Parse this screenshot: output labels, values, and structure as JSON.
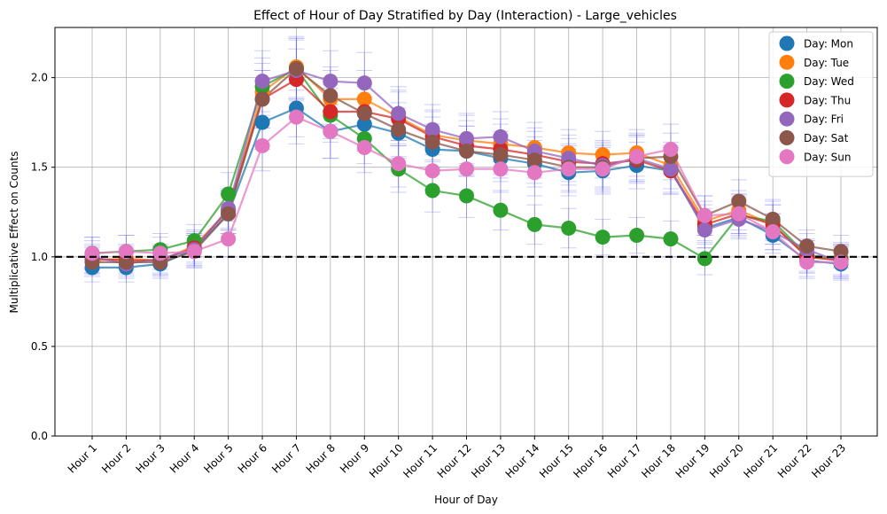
{
  "chart_data": {
    "type": "line",
    "title": "Effect of Hour of Day Stratified by Day (Interaction) - Large_vehicles",
    "xlabel": "Hour of Day",
    "ylabel": "Multiplicative Effect on Counts",
    "categories": [
      "Hour 1",
      "Hour 2",
      "Hour 3",
      "Hour 4",
      "Hour 5",
      "Hour 6",
      "Hour 7",
      "Hour 8",
      "Hour 9",
      "Hour 10",
      "Hour 11",
      "Hour 12",
      "Hour 13",
      "Hour 14",
      "Hour 15",
      "Hour 16",
      "Hour 17",
      "Hour 18",
      "Hour 19",
      "Hour 20",
      "Hour 21",
      "Hour 22",
      "Hour 23"
    ],
    "ylim": [
      0,
      2.28
    ],
    "yticks": [
      "0.0",
      "0.5",
      "1.0",
      "1.5",
      "2.0"
    ],
    "ytick_values": [
      0,
      0.5,
      1.0,
      1.5,
      2.0
    ],
    "reference_line": 1.0,
    "grid": true,
    "legend_position": "top-right",
    "error_bar_color": "#5b5bff",
    "series": [
      {
        "name": "Day: Mon",
        "color": "#1f77b4",
        "values": [
          0.94,
          0.94,
          0.96,
          1.04,
          1.24,
          1.75,
          1.83,
          1.7,
          1.74,
          1.69,
          1.6,
          1.59,
          1.55,
          1.52,
          1.47,
          1.48,
          1.51,
          1.48,
          1.16,
          1.22,
          1.12,
          0.98,
          0.96
        ],
        "err": [
          0.08,
          0.08,
          0.08,
          0.09,
          0.11,
          0.15,
          0.16,
          0.15,
          0.15,
          0.14,
          0.14,
          0.14,
          0.13,
          0.13,
          0.13,
          0.13,
          0.13,
          0.13,
          0.11,
          0.11,
          0.1,
          0.09,
          0.09
        ]
      },
      {
        "name": "Day: Tue",
        "color": "#ff7f0e",
        "values": [
          0.98,
          0.99,
          0.98,
          1.06,
          1.26,
          1.92,
          2.06,
          1.88,
          1.88,
          1.78,
          1.68,
          1.65,
          1.63,
          1.61,
          1.58,
          1.57,
          1.58,
          1.51,
          1.2,
          1.26,
          1.18,
          1.0,
          0.98
        ],
        "err": [
          0.08,
          0.08,
          0.08,
          0.09,
          0.11,
          0.16,
          0.17,
          0.16,
          0.16,
          0.15,
          0.14,
          0.14,
          0.14,
          0.14,
          0.13,
          0.13,
          0.13,
          0.13,
          0.11,
          0.11,
          0.11,
          0.09,
          0.09
        ]
      },
      {
        "name": "Day: Wed",
        "color": "#2ca02c",
        "values": [
          1.02,
          1.03,
          1.04,
          1.09,
          1.35,
          1.95,
          2.05,
          1.79,
          1.66,
          1.49,
          1.37,
          1.34,
          1.26,
          1.18,
          1.16,
          1.11,
          1.12,
          1.1,
          0.99,
          1.23,
          1.2,
          1.01,
          0.99
        ],
        "err": [
          0.09,
          0.09,
          0.09,
          0.09,
          0.12,
          0.16,
          0.17,
          0.15,
          0.14,
          0.13,
          0.12,
          0.12,
          0.11,
          0.11,
          0.11,
          0.1,
          0.1,
          0.1,
          0.09,
          0.11,
          0.11,
          0.09,
          0.09
        ]
      },
      {
        "name": "Day: Thu",
        "color": "#d62728",
        "values": [
          0.99,
          0.98,
          0.98,
          1.05,
          1.26,
          1.88,
          1.99,
          1.81,
          1.81,
          1.77,
          1.67,
          1.62,
          1.6,
          1.57,
          1.53,
          1.52,
          1.54,
          1.48,
          1.18,
          1.24,
          1.18,
          1.0,
          0.98
        ],
        "err": [
          0.08,
          0.08,
          0.08,
          0.09,
          0.11,
          0.16,
          0.17,
          0.15,
          0.15,
          0.15,
          0.14,
          0.14,
          0.14,
          0.13,
          0.13,
          0.13,
          0.13,
          0.13,
          0.11,
          0.11,
          0.11,
          0.09,
          0.09
        ]
      },
      {
        "name": "Day: Fri",
        "color": "#9467bd",
        "values": [
          1.0,
          0.96,
          0.99,
          1.04,
          1.27,
          1.98,
          2.04,
          1.98,
          1.97,
          1.8,
          1.71,
          1.66,
          1.67,
          1.59,
          1.55,
          1.51,
          1.55,
          1.49,
          1.15,
          1.21,
          1.14,
          1.04,
          0.97
        ],
        "err": [
          0.09,
          0.08,
          0.08,
          0.09,
          0.11,
          0.17,
          0.17,
          0.17,
          0.17,
          0.15,
          0.14,
          0.14,
          0.14,
          0.13,
          0.13,
          0.13,
          0.13,
          0.13,
          0.1,
          0.11,
          0.1,
          0.09,
          0.09
        ]
      },
      {
        "name": "Day: Sat",
        "color": "#8c564b",
        "values": [
          0.97,
          0.97,
          0.97,
          1.03,
          1.24,
          1.88,
          2.05,
          1.9,
          1.8,
          1.71,
          1.64,
          1.59,
          1.57,
          1.54,
          1.5,
          1.5,
          1.55,
          1.56,
          1.23,
          1.31,
          1.21,
          1.06,
          1.03
        ],
        "err": [
          0.08,
          0.08,
          0.08,
          0.09,
          0.11,
          0.16,
          0.17,
          0.16,
          0.15,
          0.15,
          0.14,
          0.14,
          0.13,
          0.13,
          0.13,
          0.13,
          0.13,
          0.13,
          0.11,
          0.12,
          0.11,
          0.09,
          0.09
        ]
      },
      {
        "name": "Day: Sun",
        "color": "#e377c2",
        "values": [
          1.02,
          1.03,
          1.02,
          1.03,
          1.1,
          1.62,
          1.78,
          1.7,
          1.61,
          1.52,
          1.48,
          1.49,
          1.49,
          1.47,
          1.49,
          1.49,
          1.56,
          1.6,
          1.23,
          1.24,
          1.14,
          0.97,
          0.97
        ],
        "err": [
          0.09,
          0.09,
          0.09,
          0.09,
          0.1,
          0.14,
          0.15,
          0.15,
          0.14,
          0.13,
          0.13,
          0.13,
          0.13,
          0.13,
          0.13,
          0.13,
          0.13,
          0.14,
          0.11,
          0.11,
          0.1,
          0.09,
          0.09
        ]
      }
    ]
  }
}
